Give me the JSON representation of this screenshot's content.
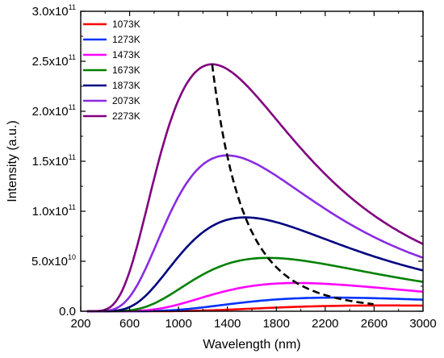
{
  "chart_data": {
    "type": "line",
    "title": "",
    "xlabel": "Wavelength (nm)",
    "ylabel": "Intensity (a.u.)",
    "xlim": [
      200,
      3000
    ],
    "ylim": [
      0,
      300000000000
    ],
    "x_ticks": [
      200,
      600,
      1000,
      1400,
      1800,
      2200,
      2600,
      3000
    ],
    "x_tick_labels": [
      "200",
      "600",
      "1000",
      "1400",
      "1800",
      "2200",
      "2600",
      "3000"
    ],
    "y_ticks": [
      0,
      50000000000,
      100000000000,
      150000000000,
      200000000000,
      250000000000,
      300000000000
    ],
    "y_tick_labels": [
      {
        "text": "0.0",
        "exp": ""
      },
      {
        "text": "5.0x10",
        "exp": "10"
      },
      {
        "text": "1.0x10",
        "exp": "11"
      },
      {
        "text": "1.5x10",
        "exp": "11"
      },
      {
        "text": "2.0x10",
        "exp": "11"
      },
      {
        "text": "2.5x10",
        "exp": "11"
      },
      {
        "text": "3.0x10",
        "exp": "11"
      }
    ],
    "legend_position": "top-left",
    "grid": false,
    "series": [
      {
        "name": "1073K",
        "temperature_K": 1073,
        "color": "#ff0000"
      },
      {
        "name": "1273K",
        "temperature_K": 1273,
        "color": "#0033ff"
      },
      {
        "name": "1473K",
        "temperature_K": 1473,
        "color": "#ff00ff"
      },
      {
        "name": "1673K",
        "temperature_K": 1673,
        "color": "#008000"
      },
      {
        "name": "1873K",
        "temperature_K": 1873,
        "color": "#000080"
      },
      {
        "name": "2073K",
        "temperature_K": 2073,
        "color": "#8a2be2"
      },
      {
        "name": "2273K",
        "temperature_K": 2273,
        "color": "#800080"
      }
    ],
    "peak_locus": {
      "style": "dashed",
      "color": "#000000",
      "x_range": [
        1275,
        2600
      ]
    },
    "peak_value_2273K": 247000000000
  }
}
